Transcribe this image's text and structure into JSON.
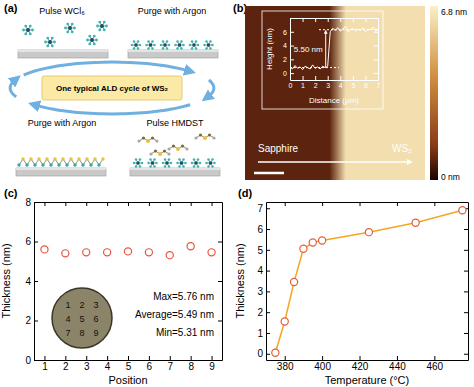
{
  "chart_data": [
    {
      "type": "diagram",
      "title": "(a)",
      "annotations": [
        "Pulse WCl₆",
        "Purge with Argon",
        "Pulse HMDST",
        "Purge with Argon",
        "One typical ALD cycle of WS₂"
      ]
    },
    {
      "type": "image",
      "title": "(b)",
      "annotations": [
        "Sapphire",
        "WS₂"
      ],
      "colorbar": {
        "range": [
          0,
          6.8
        ],
        "ticks": [
          {
            "value": 0,
            "label": "0 nm"
          },
          {
            "value": 6.8,
            "label": "6.8 nm"
          }
        ]
      },
      "inset": {
        "type": "line",
        "xlabel": "Distance (μm)",
        "ylabel": "Height (nm)",
        "x": [
          0,
          0.2,
          0.4,
          0.6,
          0.8,
          1,
          1.2,
          1.4,
          1.6,
          1.8,
          2,
          2.2,
          2.4,
          2.6,
          2.8,
          3,
          3.2,
          3.4,
          3.6,
          3.8,
          4,
          4.2,
          4.4,
          4.6,
          4.8,
          5,
          5.2,
          5.4,
          5.6,
          5.8,
          6,
          6.2,
          6.4,
          6.6,
          6.8,
          7
        ],
        "values": [
          0.9,
          0.6,
          1.1,
          0.7,
          0.9,
          0.5,
          1.0,
          0.8,
          0.6,
          1.2,
          0.7,
          0.9,
          0.6,
          1.0,
          0.8,
          1.0,
          6.0,
          6.5,
          6.2,
          6.6,
          6.1,
          6.4,
          6.8,
          6.0,
          6.3,
          6.5,
          6.1,
          6.4,
          6.2,
          6.6,
          6.0,
          6.4,
          6.3,
          6.7,
          6.1,
          6.3
        ],
        "xlim": [
          0,
          7
        ],
        "ylim": [
          -1,
          8
        ],
        "xticks": [
          0,
          1,
          2,
          3,
          4,
          5,
          6,
          7
        ],
        "yticks": [
          0,
          2,
          4,
          6
        ],
        "levels": [
          0.8,
          6.3
        ],
        "annotations": [
          "5.50 nm"
        ],
        "color": "#ffffff"
      }
    },
    {
      "type": "scatter",
      "title": "(c)",
      "xlabel": "Position",
      "ylabel": "Thickness (nm)",
      "x": [
        1,
        2,
        3,
        4,
        5,
        6,
        7,
        8,
        9
      ],
      "values": [
        5.6,
        5.4,
        5.45,
        5.45,
        5.5,
        5.45,
        5.31,
        5.76,
        5.45
      ],
      "xlim": [
        0.5,
        9.5
      ],
      "ylim": [
        0,
        8
      ],
      "xticks": [
        1,
        2,
        3,
        4,
        5,
        6,
        7,
        8,
        9
      ],
      "yticks": [
        0,
        2,
        4,
        6,
        8
      ],
      "color": "#e8553d",
      "marker": "circle",
      "annotations": [
        "Max=5.76 nm",
        "Average=5.49 nm",
        "Min=5.31 nm"
      ],
      "inset_labels": [
        1,
        2,
        3,
        4,
        5,
        6,
        7,
        8,
        9
      ]
    },
    {
      "type": "line",
      "title": "(d)",
      "xlabel": "Temperature (°C)",
      "ylabel": "Thickness (nm)",
      "x": [
        375,
        380,
        385,
        390,
        395,
        400,
        425,
        450,
        475
      ],
      "values": [
        0.05,
        1.55,
        3.45,
        5.05,
        5.35,
        5.45,
        5.85,
        6.3,
        6.9
      ],
      "xlim": [
        370,
        478
      ],
      "ylim": [
        -0.3,
        7.3
      ],
      "xticks": [
        380,
        400,
        420,
        440,
        460
      ],
      "yticks": [
        0,
        1,
        2,
        3,
        4,
        5,
        6,
        7
      ],
      "color": "#f5a623",
      "marker": "circle"
    }
  ]
}
